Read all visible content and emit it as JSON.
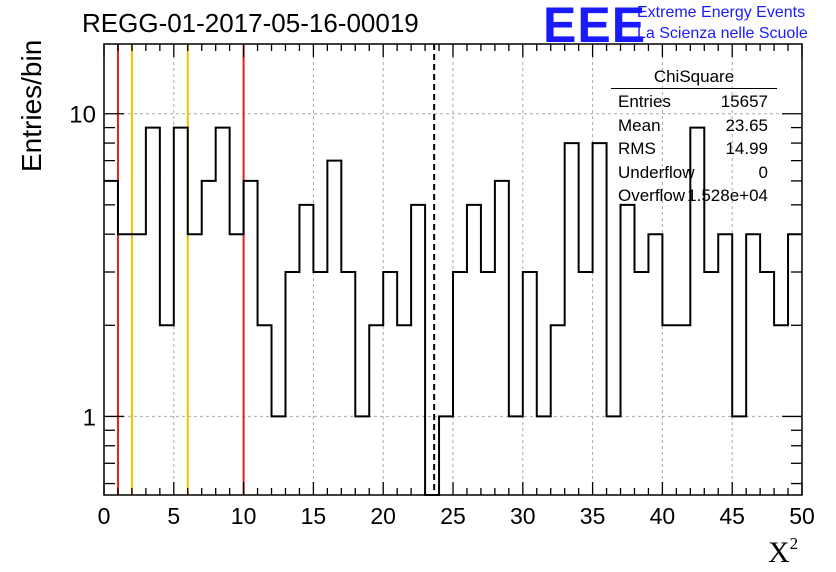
{
  "header": {
    "title": "REGG-01-2017-05-16-00019"
  },
  "logo": {
    "mark": "EEE",
    "line1": "Extreme Energy Events",
    "line2": "La Scienza nelle Scuole"
  },
  "stats": {
    "title": "ChiSquare",
    "rows": [
      {
        "key": "Entries",
        "value": "15657"
      },
      {
        "key": "Mean",
        "value": "23.65"
      },
      {
        "key": "RMS",
        "value": "14.99"
      },
      {
        "key": "Underflow",
        "value": "0"
      },
      {
        "key": "Overflow",
        "value": "1.528e+04"
      }
    ]
  },
  "chart_data": {
    "type": "histogram",
    "title": "REGG-01-2017-05-16-00019",
    "xlabel": "X²",
    "ylabel": "Entries/bin",
    "xlim": [
      0,
      50
    ],
    "ylim": [
      0.55,
      17
    ],
    "yscale": "log",
    "grid": true,
    "bin_width": 1,
    "x_ticks": [
      "0",
      "5",
      "10",
      "15",
      "20",
      "25",
      "30",
      "35",
      "40",
      "45",
      "50"
    ],
    "y_ticks": [
      "1",
      "10"
    ],
    "bins_x": [
      0,
      1,
      2,
      3,
      4,
      5,
      6,
      7,
      8,
      9,
      10,
      11,
      12,
      13,
      14,
      15,
      16,
      17,
      18,
      19,
      20,
      21,
      22,
      23,
      24,
      25,
      26,
      27,
      28,
      29,
      30,
      31,
      32,
      33,
      34,
      35,
      36,
      37,
      38,
      39,
      40,
      41,
      42,
      43,
      44,
      45,
      46,
      47,
      48,
      49
    ],
    "values": [
      6,
      4,
      4,
      9,
      2,
      9,
      4,
      6,
      9,
      4,
      6,
      2,
      1,
      3,
      5,
      3,
      7,
      3,
      1,
      2,
      3,
      2,
      5,
      0.55,
      1,
      3,
      5,
      3,
      6,
      1,
      3,
      1,
      2,
      8,
      3,
      8,
      1,
      5,
      3,
      4,
      2,
      2,
      9,
      3,
      4,
      1,
      4,
      3,
      2,
      4
    ],
    "vertical_lines": [
      {
        "x": 1,
        "color": "#e0201a",
        "style": "solid"
      },
      {
        "x": 10,
        "color": "#e0201a",
        "style": "solid"
      },
      {
        "x": 2,
        "color": "#f2c200",
        "style": "solid"
      },
      {
        "x": 6,
        "color": "#f2c200",
        "style": "solid"
      },
      {
        "x": 23.65,
        "color": "#000000",
        "style": "dashed"
      }
    ]
  }
}
